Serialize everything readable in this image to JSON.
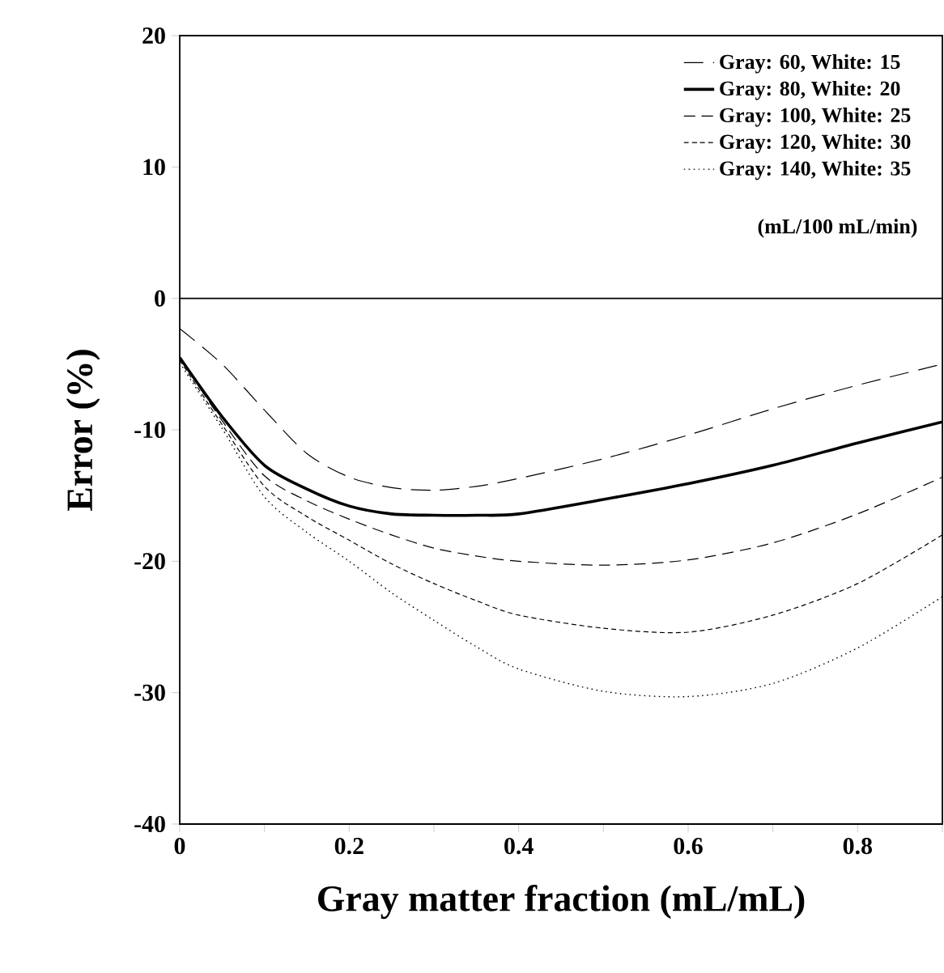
{
  "chart_data": {
    "type": "line",
    "xlabel": "Gray matter fraction (mL/mL)",
    "ylabel": "Error (%)",
    "xlim": [
      0,
      0.9
    ],
    "ylim": [
      -40,
      20
    ],
    "xticks": [
      0,
      {
        "value": 0.1,
        "label": null
      },
      0.2,
      {
        "value": 0.3,
        "label": null
      },
      0.4,
      {
        "value": 0.5,
        "label": null
      },
      0.6,
      {
        "value": 0.7,
        "label": null
      },
      0.8,
      {
        "value": 0.9,
        "label": null
      }
    ],
    "yticks": [
      -40,
      -30,
      -20,
      -10,
      0,
      10,
      20
    ],
    "x": [
      0,
      0.05,
      0.1,
      0.15,
      0.2,
      0.25,
      0.3,
      0.35,
      0.4,
      0.5,
      0.6,
      0.7,
      0.8,
      0.9
    ],
    "series": [
      {
        "name": "Gray:  60, White: 15",
        "color": "#000000",
        "line_style": "dashed",
        "values": [
          -2.3,
          -5.0,
          -8.5,
          -11.8,
          -13.6,
          -14.4,
          -14.6,
          -14.3,
          -13.7,
          -12.2,
          -10.4,
          -8.4,
          -6.6,
          -5.0
        ]
      },
      {
        "name": "Gray:  80, White: 20",
        "color": "#000000",
        "line_style": "solid",
        "values": [
          -4.5,
          -9.0,
          -12.7,
          -14.5,
          -15.8,
          -16.4,
          -16.5,
          -16.5,
          -16.4,
          -15.3,
          -14.1,
          -12.7,
          -11.0,
          -9.4
        ]
      },
      {
        "name": "Gray: 100, White: 25",
        "color": "#000000",
        "line_style": "dashed",
        "values": [
          -4.5,
          -9.3,
          -13.5,
          -15.4,
          -16.8,
          -18.0,
          -19.0,
          -19.6,
          -20.0,
          -20.3,
          -19.9,
          -18.6,
          -16.4,
          -13.6
        ]
      },
      {
        "name": "Gray: 120, White: 30",
        "color": "#000000",
        "line_style": "dashed",
        "values": [
          -4.7,
          -9.6,
          -14.3,
          -16.6,
          -18.4,
          -20.2,
          -21.7,
          -23.0,
          -24.1,
          -25.1,
          -25.4,
          -24.1,
          -21.7,
          -18.0
        ]
      },
      {
        "name": "Gray: 140, White: 35",
        "color": "#000000",
        "line_style": "dotted",
        "values": [
          -4.9,
          -9.9,
          -15.1,
          -17.8,
          -20.0,
          -22.4,
          -24.5,
          -26.5,
          -28.2,
          -29.9,
          -30.3,
          -29.3,
          -26.6,
          -22.7
        ]
      }
    ],
    "ref_lines": [
      {
        "axis": "y",
        "value": 0
      }
    ],
    "legend": "top right",
    "grid": false,
    "marker": "none",
    "annotations": [
      "(mL/100 mL/min)"
    ]
  }
}
